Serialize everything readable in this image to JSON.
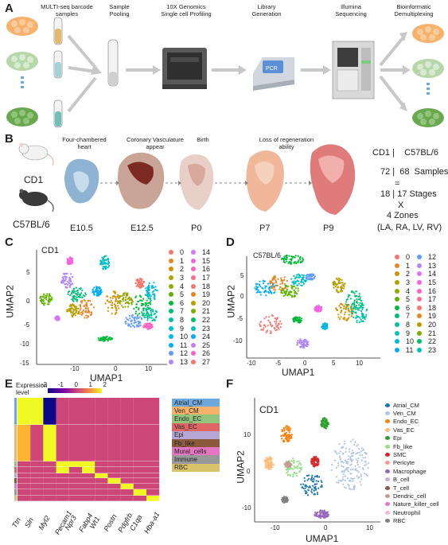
{
  "figure": {
    "panel_a": {
      "label": "A",
      "steps": [
        "MULTI-seq barcode\nsamples",
        "Sample\nPooling",
        "10X Genomics\nSingle cell Profiling",
        "Library\nGeneration",
        "Illumina\nSequencing",
        "Bioinformatic\nDemultiplexing"
      ]
    },
    "panel_b": {
      "label": "B",
      "strain1": "CD1",
      "strain2": "C57BL/6",
      "events": [
        "Four-chambered\nheart",
        "Coronary Vasculature\nappear",
        "Birth",
        "Loss of regeneration\nability"
      ],
      "stages": [
        "E10.5",
        "E12.5",
        "P0",
        "P7",
        "P9"
      ],
      "summary": {
        "strains": "CD1 |    C57BL/6",
        "samples": "72 |  68  Samples",
        "equals": "=",
        "stages": "18 | 17 Stages",
        "times": "X",
        "zones": "4 Zones",
        "zone_list": "(LA, RA, LV, RV)"
      }
    },
    "panel_c": {
      "label": "C",
      "title": "CD1",
      "xlabel": "UMAP1",
      "ylabel": "UMAP2",
      "xticks": [
        "-10",
        "0",
        "10"
      ],
      "yticks": [
        "5",
        "0",
        "-5",
        "-10",
        "-15"
      ],
      "legend_col1": [
        "0",
        "1",
        "2",
        "3",
        "4",
        "5",
        "6",
        "7",
        "8",
        "9",
        "10",
        "11",
        "12",
        "13"
      ],
      "legend_col2": [
        "14",
        "15",
        "16",
        "17",
        "18",
        "19",
        "20",
        "21",
        "22",
        "23",
        "24",
        "25",
        "26",
        "27"
      ]
    },
    "panel_d": {
      "label": "D",
      "title": "C57BL/6",
      "xlabel": "UMAP1",
      "ylabel": "UMAP2",
      "xticks": [
        "-10",
        "-5",
        "0",
        "5",
        "10"
      ],
      "yticks": [
        "5",
        "0",
        "-5",
        "-10"
      ],
      "legend_col1": [
        "0",
        "1",
        "2",
        "3",
        "4",
        "5",
        "6",
        "7",
        "8",
        "9",
        "10",
        "11"
      ],
      "legend_col2": [
        "12",
        "13",
        "14",
        "15",
        "16",
        "17",
        "18",
        "19",
        "20",
        "21",
        "22",
        "23"
      ]
    },
    "panel_e": {
      "label": "E",
      "colorbar_title": "Expression\nlevel",
      "colorbar_ticks": [
        "-2",
        "-1",
        "0",
        "1",
        "2"
      ],
      "genes": [
        "Ttn",
        "Sln",
        "Myl2",
        "Pecam1",
        "Npr3",
        "Fabp4",
        "Wt1",
        "Postn",
        "Pdgfrb",
        "C1qa",
        "Hba-a1"
      ],
      "cell_types": [
        "Atrial_CM",
        "Ven_CM",
        "Endo_EC",
        "Vas_EC",
        "Epi",
        "Fb_like",
        "Mural_cells",
        "Immune",
        "RBC"
      ]
    },
    "panel_f": {
      "label": "F",
      "title": "CD1",
      "xlabel": "UMAP1",
      "ylabel": "UMAP2",
      "xticks": [
        "-10",
        "0",
        "10"
      ],
      "yticks": [
        "10",
        "0",
        "-10"
      ],
      "legend": [
        "Atrial_CM",
        "Ven_CM",
        "Endo_EC",
        "Vas_EC",
        "Epi",
        "Fb_like",
        "SMC",
        "Pericyte",
        "Macrophage",
        "B_cell",
        "T_cell",
        "Dendric_cell",
        "Nature_killer_cell",
        "Neutrophil",
        "RBC"
      ]
    }
  },
  "colors": {
    "cluster_palette": [
      "#f8766d",
      "#e88526",
      "#d39200",
      "#b79f00",
      "#93aa00",
      "#5eb300",
      "#00ba38",
      "#00bf74",
      "#00c19f",
      "#00bfc4",
      "#00b9e3",
      "#00adfa",
      "#619cff",
      "#ae87ff",
      "#db72fb",
      "#f564e3",
      "#ff61c3",
      "#ff6c91",
      "#f8766d",
      "#e7861b",
      "#c09b00",
      "#7cae00",
      "#00be67",
      "#00bfc4",
      "#00a9ff",
      "#c77cff",
      "#ff61cc",
      "#f8766d"
    ],
    "celltype_palette": [
      "#6fa8dc",
      "#f4a582",
      "#cfe8b0",
      "#a8d08d",
      "#e06666",
      "#b4a7d6",
      "#ffd966",
      "#c9a0dc",
      "#93c47d",
      "#f6b26b",
      "#76a5af",
      "#d5a6bd",
      "#b6d7a8",
      "#f9cb9c",
      "#9fc5e8"
    ],
    "f_palette": [
      "#1f77b4",
      "#aec7e8",
      "#ff7f0e",
      "#ffbb78",
      "#2ca02c",
      "#98df8a",
      "#d62728",
      "#ff9896",
      "#9467bd",
      "#c5b0d5",
      "#8c564b",
      "#c49c94",
      "#e377c2",
      "#f7b6d2",
      "#7f7f7f"
    ]
  }
}
